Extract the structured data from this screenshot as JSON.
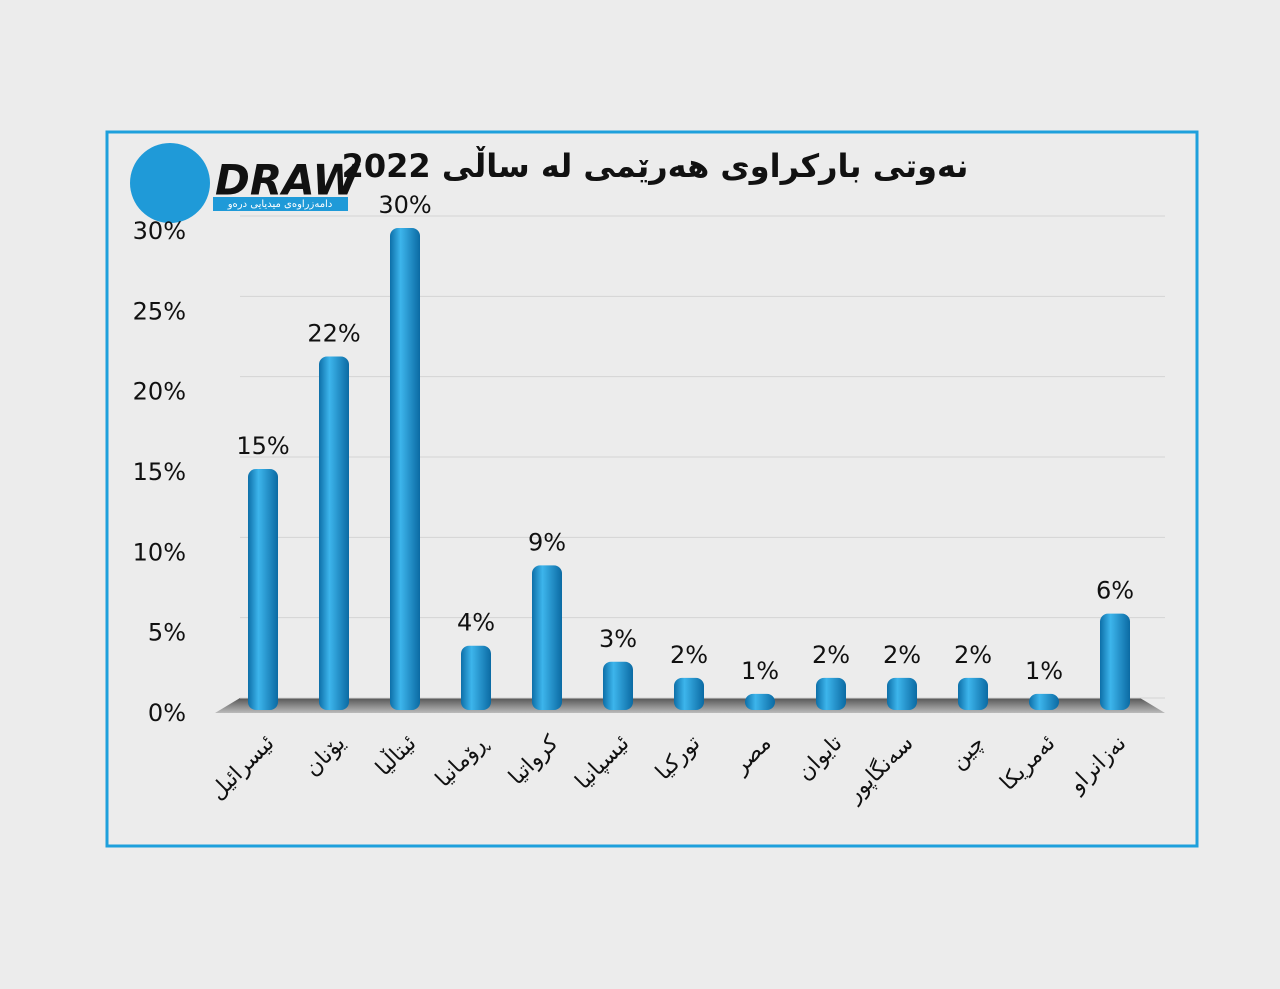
{
  "chart_data": {
    "type": "bar",
    "title": "نەوتی بارکراوی هەرێمی  لە ساڵی 2022",
    "logo": {
      "text": "DRAW",
      "subtitle": "دامەزراوەی میدیایی درەو"
    },
    "categories": [
      "ئیسرائیل",
      "یۆنان",
      "ئیتاڵیا",
      "ڕۆمانیا",
      "کرواتیا",
      "ئیسپانیا",
      "تورکیا",
      "مصر",
      "تایوان",
      "سەنگاپور",
      "چین",
      "ئەمریکا",
      "نەزانراو"
    ],
    "values": [
      15,
      22,
      30,
      4,
      9,
      3,
      2,
      1,
      2,
      2,
      2,
      1,
      6
    ],
    "value_labels": [
      "15%",
      "22%",
      "30%",
      "4%",
      "9%",
      "3%",
      "2%",
      "1%",
      "2%",
      "2%",
      "2%",
      "1%",
      "6%"
    ],
    "color": "#1a9ad6",
    "ylim": [
      0,
      30
    ],
    "yticks": [
      {
        "value": 0,
        "label": "0%"
      },
      {
        "value": 5,
        "label": "5%"
      },
      {
        "value": 10,
        "label": "10%"
      },
      {
        "value": 15,
        "label": "15%"
      },
      {
        "value": 20,
        "label": "20%"
      },
      {
        "value": 25,
        "label": "25%"
      },
      {
        "value": 30,
        "label": "30%"
      }
    ],
    "grid": true
  }
}
